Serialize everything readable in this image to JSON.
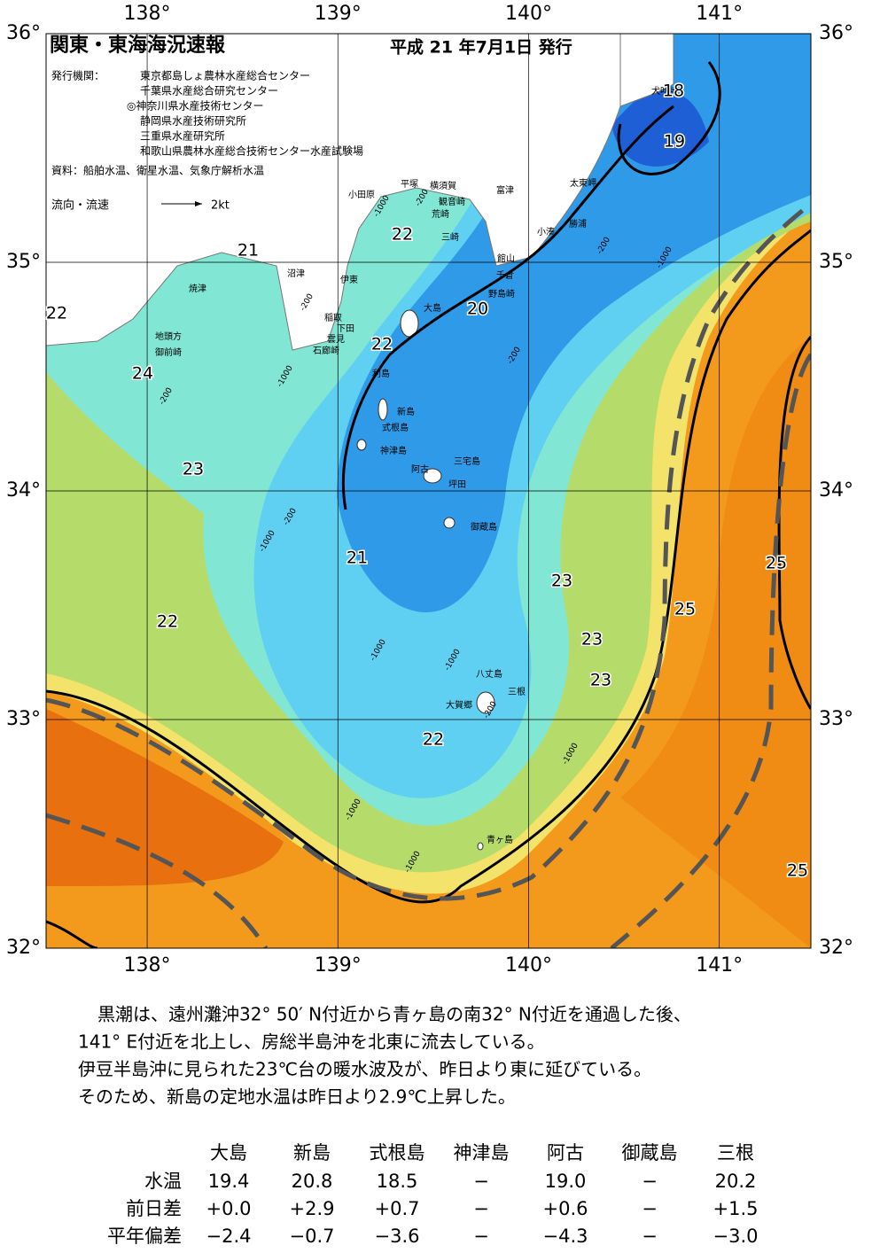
{
  "header": {
    "title": "関東・東海海況速報",
    "date": "平成 21 年7月1日 発行",
    "issuer_label": "発行機関：",
    "issuers": [
      "東京都島しょ農林水産総合センター",
      "千葉県水産総合研究センター",
      "◎神奈川県水産技術センター",
      "静岡県水産技術研究所",
      "三重県水産研究所",
      "和歌山県農林水産総合技術センター水産試験場"
    ],
    "source": "資料：船舶水温、衛星水温、気象庁解析水温",
    "legend_label": "流向・流速",
    "legend_speed": "2kt"
  },
  "map": {
    "lonlim": [
      137.47,
      141.48
    ],
    "latlim": [
      32,
      36
    ],
    "lon_ticks": [
      {
        "value": 138,
        "label": "138°"
      },
      {
        "value": 139,
        "label": "139°"
      },
      {
        "value": 140,
        "label": "140°"
      },
      {
        "value": 141,
        "label": "141°"
      }
    ],
    "lat_ticks": [
      {
        "value": 32,
        "label": "32°"
      },
      {
        "value": 33,
        "label": "33°"
      },
      {
        "value": 34,
        "label": "34°"
      },
      {
        "value": 35,
        "label": "35°"
      },
      {
        "value": 36,
        "label": "36°"
      }
    ],
    "places": [
      "小田原",
      "平塚",
      "横須賀",
      "観音崎",
      "荒崎",
      "三崎",
      "富津",
      "館山",
      "千倉",
      "野島崎",
      "小湊",
      "勝浦",
      "太東岬",
      "犬吠埼",
      "沼津",
      "伊東",
      "稲取",
      "下田",
      "雲見",
      "石廊崎",
      "焼津",
      "地頭方",
      "御前崎",
      "大島",
      "利島",
      "新島",
      "式根島",
      "神津島",
      "阿古",
      "三宅島",
      "坪田",
      "御蔵島",
      "八丈島",
      "三根",
      "大賀郷",
      "青ヶ島"
    ],
    "isotherm_labels": [
      18,
      19,
      22,
      21,
      22,
      20,
      22,
      24,
      23,
      21,
      22,
      23,
      23,
      23,
      22,
      25,
      25,
      25
    ],
    "depth_labels": [
      "-1000",
      "-200",
      "-200",
      "-200",
      "-1000",
      "-200",
      "-1000",
      "-200",
      "-1000",
      "-1000",
      "-1000",
      "-1000",
      "-200",
      "-1000",
      "-1000",
      "-200"
    ]
  },
  "text": [
    "黒潮は、遠州灘沖32° 50′ N付近から青ヶ島の南32° N付近を通過した後、",
    "141° E付近を北上し、房総半島沖を北東に流去している。",
    "伊豆半島沖に見られた23℃台の暖水波及が、昨日より東に延びている。",
    "そのため、新島の定地水温は昨日より2.9℃上昇した。"
  ],
  "table": {
    "header": [
      "大島",
      "新島",
      "式根島",
      "神津島",
      "阿古",
      "御蔵島",
      "三根"
    ],
    "rows": [
      [
        "水温",
        "19.4",
        "20.8",
        "18.5",
        "−",
        "19.0",
        "−",
        "20.2"
      ],
      [
        "前日差",
        "+0.0",
        "+2.9",
        "+0.7",
        "−",
        "+0.6",
        "−",
        "+1.5"
      ],
      [
        "平年偏差",
        "−2.4",
        "−0.7",
        "−3.6",
        "−",
        "−4.3",
        "−",
        "−3.0"
      ]
    ]
  }
}
